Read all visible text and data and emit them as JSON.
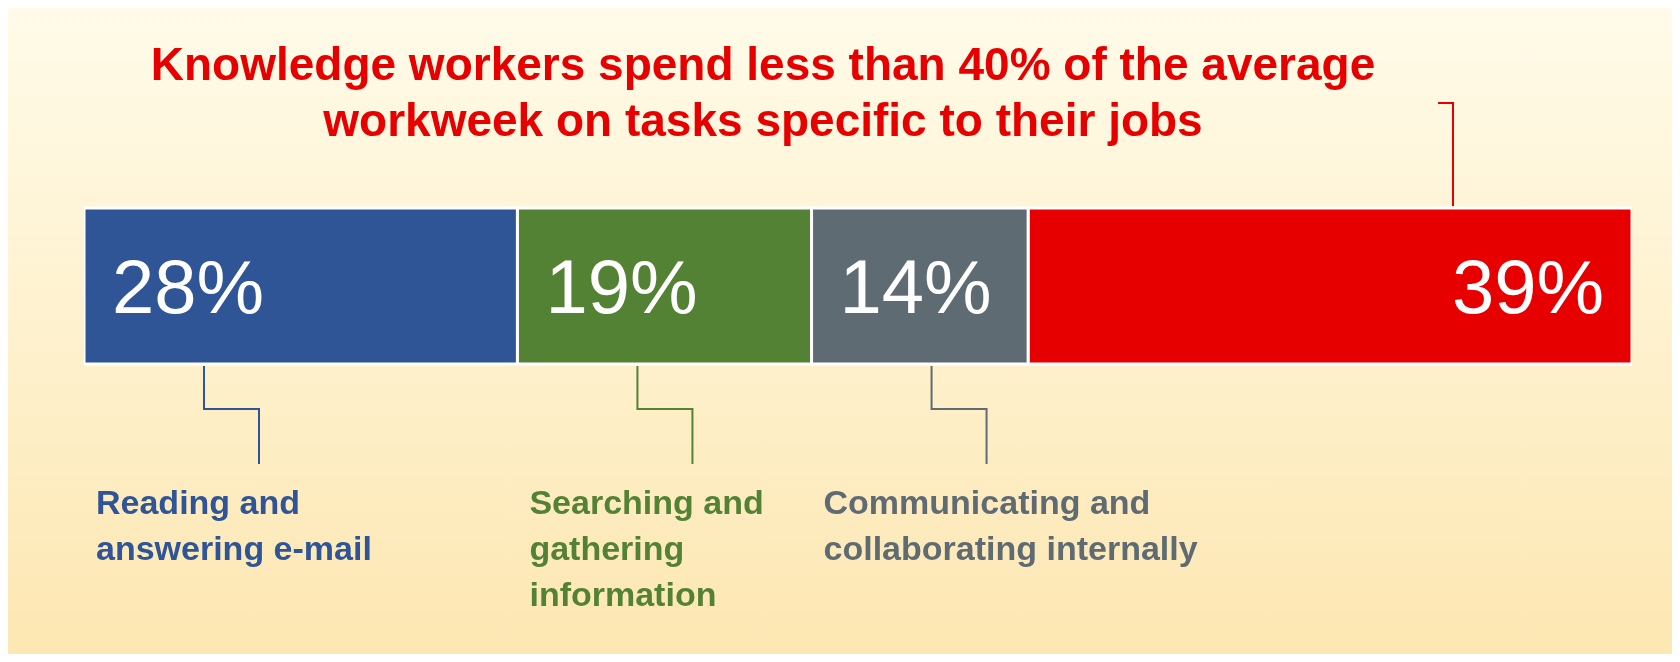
{
  "chart_data": {
    "type": "bar",
    "orientation": "horizontal",
    "stacked": true,
    "title": "Knowledge workers spend less than 40% of the average workweek on tasks specific to their jobs",
    "categories": [
      null
    ],
    "xlim": [
      0,
      100
    ],
    "tick_labels": false,
    "legend": false,
    "grid": false,
    "series": [
      {
        "name": "Reading and answering e-mail",
        "color": "#2f5597",
        "values": [
          28
        ],
        "value_labels": [
          "28%"
        ]
      },
      {
        "name": "Searching and gathering information",
        "color": "#548235",
        "values": [
          19
        ],
        "value_labels": [
          "19%"
        ]
      },
      {
        "name": "Communicating and collaborating internally",
        "color": "#5f6b73",
        "values": [
          14
        ],
        "value_labels": [
          "14%"
        ]
      },
      {
        "color": "#e60000",
        "values": [
          39
        ],
        "value_labels": [
          "39%"
        ]
      }
    ]
  }
}
